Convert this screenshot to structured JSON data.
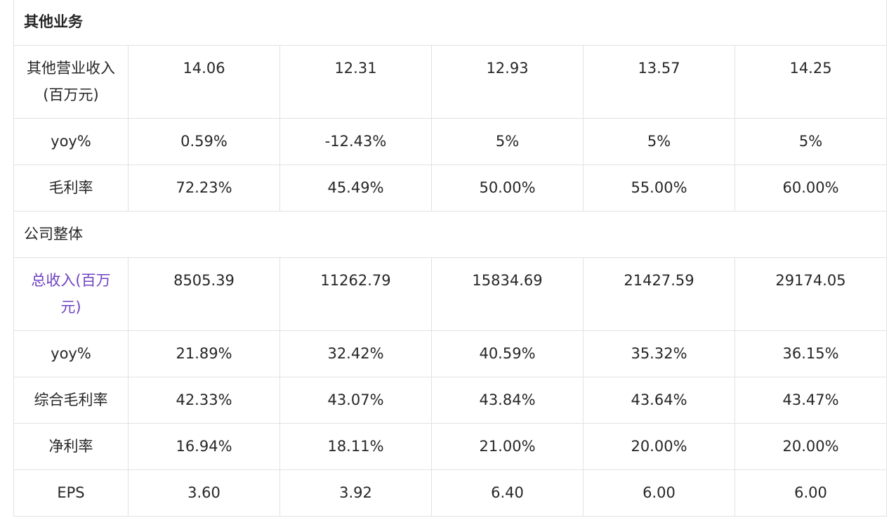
{
  "sections": {
    "other_business": "其他业务",
    "company_overall": "公司整体"
  },
  "other": {
    "revenue": {
      "label": "其他营业收入(百万元)",
      "values": [
        "14.06",
        "12.31",
        "12.93",
        "13.57",
        "14.25"
      ]
    },
    "yoy": {
      "label": "yoy%",
      "values": [
        "0.59%",
        "-12.43%",
        "5%",
        "5%",
        "5%"
      ]
    },
    "margin": {
      "label": "毛利率",
      "values": [
        "72.23%",
        "45.49%",
        "50.00%",
        "55.00%",
        "60.00%"
      ]
    }
  },
  "company": {
    "revenue": {
      "label": "总收入(百万元)",
      "values": [
        "8505.39",
        "11262.79",
        "15834.69",
        "21427.59",
        "29174.05"
      ]
    },
    "yoy": {
      "label": "yoy%",
      "values": [
        "21.89%",
        "32.42%",
        "40.59%",
        "35.32%",
        "36.15%"
      ]
    },
    "gross_margin": {
      "label": "综合毛利率",
      "values": [
        "42.33%",
        "43.07%",
        "43.84%",
        "43.64%",
        "43.47%"
      ]
    },
    "net_margin": {
      "label": "净利率",
      "values": [
        "16.94%",
        "18.11%",
        "21.00%",
        "20.00%",
        "20.00%"
      ]
    },
    "eps": {
      "label": "EPS",
      "values": [
        "3.60",
        "3.92",
        "6.40",
        "6.00",
        "6.00"
      ]
    }
  },
  "colors": {
    "link": "#6f42c1",
    "border": "#e2e2e2",
    "text": "#262626"
  }
}
